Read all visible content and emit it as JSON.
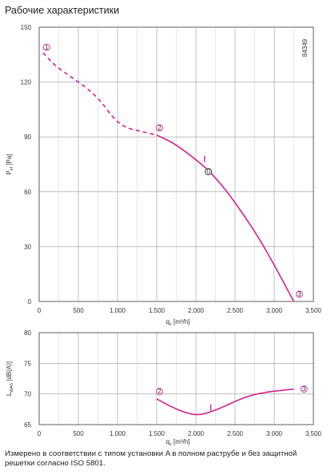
{
  "title": "Рабочие характеристики",
  "footnote": "Измерено в соответствии с типом установки A в полном раструбе и без защитной решетки согласно ISO 5801.",
  "colors": {
    "curve": "#d6218f",
    "grid": "#9a9a9a",
    "axis": "#444444"
  },
  "chart_data": [
    {
      "type": "line",
      "id_label": "84349",
      "xlabel_main": "q",
      "xlabel_sub": "v",
      "xlabel_unit": "[m³/h]",
      "ylabel_main": "P",
      "ylabel_sub": "sf",
      "ylabel_unit": "[Pa]",
      "xlim": [
        0,
        3500
      ],
      "ylim": [
        0,
        150
      ],
      "x_ticks": [
        "0",
        "500",
        "1.000",
        "1.500",
        "2.000",
        "2.500",
        "3.000",
        "3,500"
      ],
      "y_ticks": [
        "0",
        "30",
        "60",
        "90",
        "120",
        "150"
      ],
      "series": [
        {
          "style": "dashed",
          "x": [
            50,
            200,
            400,
            600,
            780,
            950,
            1100,
            1300,
            1500
          ],
          "y": [
            136,
            129,
            123,
            117,
            110,
            100,
            95,
            93,
            91
          ]
        },
        {
          "style": "solid",
          "x": [
            1500,
            1700,
            1900,
            2100,
            2200,
            2400,
            2600,
            2800,
            3000,
            3150,
            3250
          ],
          "y": [
            91,
            87,
            81,
            74,
            70,
            60,
            48,
            35,
            20,
            8,
            0
          ]
        }
      ],
      "markers": [
        {
          "label": "1",
          "x": 95,
          "y": 139
        },
        {
          "label": "2",
          "x": 1535,
          "y": 95
        },
        {
          "label": "0",
          "x": 2160,
          "y": 71
        },
        {
          "label": "3",
          "x": 3320,
          "y": 4
        },
        {
          "label": "I",
          "x": 2110,
          "y": 78
        }
      ]
    },
    {
      "type": "line",
      "xlabel_main": "q",
      "xlabel_sub": "v",
      "xlabel_unit": "[m³/h]",
      "ylabel_main": "L",
      "ylabel_sub": "WA5",
      "ylabel_unit": "[dB(A)]",
      "xlim": [
        0,
        3500
      ],
      "ylim": [
        65,
        80
      ],
      "x_ticks": [
        "0",
        "500",
        "1.000",
        "1.500",
        "2.000",
        "2.500",
        "3.000",
        "3,500"
      ],
      "y_ticks": [
        "65",
        "70",
        "75",
        "80"
      ],
      "series": [
        {
          "style": "solid",
          "x": [
            1500,
            1700,
            1900,
            2000,
            2100,
            2300,
            2500,
            2700,
            2900,
            3100,
            3250
          ],
          "y": [
            69.2,
            67.8,
            66.8,
            66.6,
            66.7,
            67.6,
            68.8,
            69.8,
            70.3,
            70.6,
            70.8
          ]
        }
      ],
      "markers": [
        {
          "label": "2",
          "x": 1535,
          "y": 70.4
        },
        {
          "label": "3",
          "x": 3380,
          "y": 70.8
        },
        {
          "label": "I",
          "x": 2190,
          "y": 67.8
        }
      ]
    }
  ]
}
